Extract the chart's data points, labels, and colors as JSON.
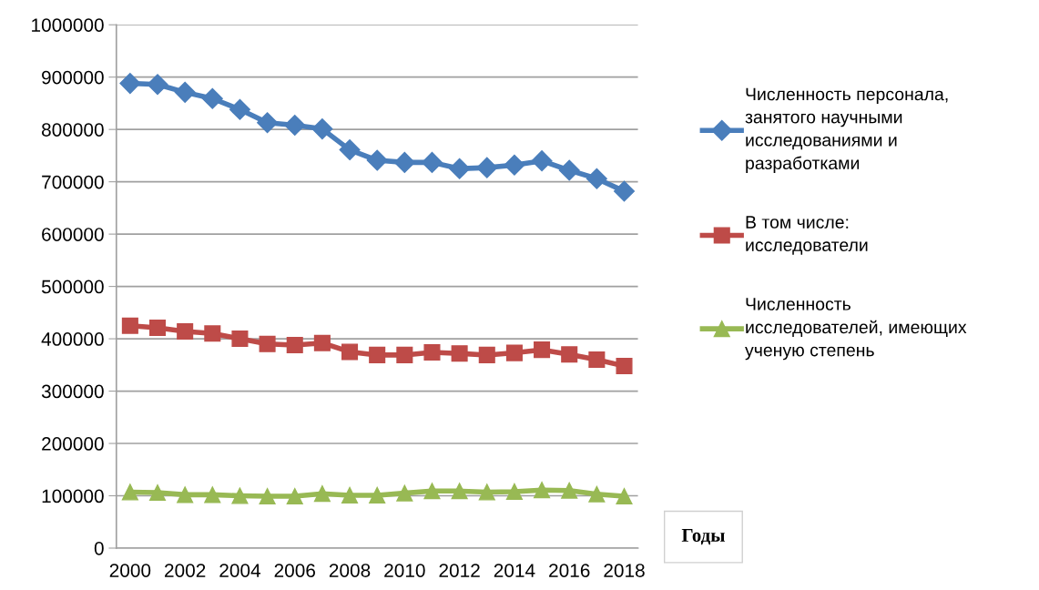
{
  "chart_data": {
    "type": "line",
    "categories": [
      "2000",
      null,
      "2002",
      null,
      "2004",
      null,
      "2006",
      null,
      "2008",
      null,
      "2010",
      null,
      "2012",
      null,
      "2014",
      null,
      "2016",
      null,
      "2018"
    ],
    "series": [
      {
        "name": "Численность персонала, занятого научными исследованиями и разработками",
        "color": "#4a7ebb",
        "marker": "diamond",
        "values": [
          888000,
          886000,
          871000,
          859000,
          838000,
          813000,
          808000,
          801000,
          761000,
          741000,
          737000,
          737000,
          725000,
          727000,
          732000,
          740000,
          722000,
          706000,
          682000
        ]
      },
      {
        "name": "В том числе: исследователи",
        "color": "#be4b48",
        "marker": "square",
        "values": [
          425000,
          421000,
          414000,
          410000,
          400000,
          390000,
          388000,
          392000,
          375000,
          369000,
          369000,
          374000,
          372000,
          369000,
          373000,
          379000,
          370000,
          360000,
          348000
        ]
      },
      {
        "name": "Численность исследователей, имеющих ученую степень",
        "color": "#98b954",
        "marker": "triangle",
        "values": [
          107000,
          106000,
          102000,
          102000,
          100000,
          99000,
          99000,
          104000,
          101000,
          101000,
          105000,
          109000,
          109000,
          107000,
          108000,
          111000,
          110000,
          103000,
          99000
        ]
      }
    ],
    "ylim": [
      0,
      1000000
    ],
    "yticks": [
      0,
      100000,
      200000,
      300000,
      400000,
      500000,
      600000,
      700000,
      800000,
      900000,
      1000000
    ],
    "grid": "y",
    "legend": "right",
    "line_style": "solid",
    "annotations": [
      "Годы"
    ]
  }
}
